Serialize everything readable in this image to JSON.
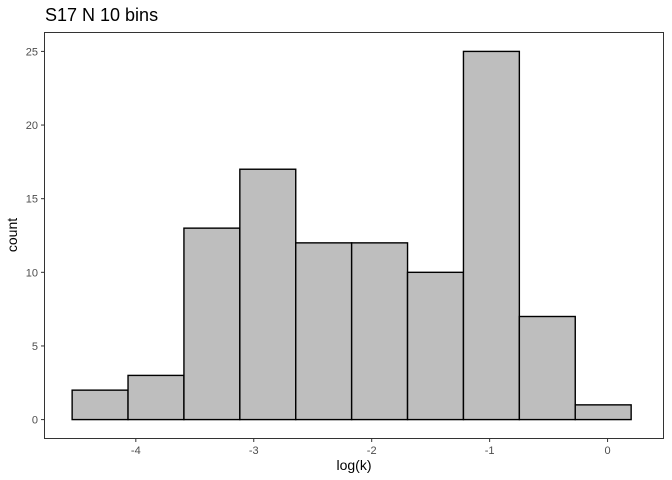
{
  "chart_data": {
    "type": "bar",
    "title": "S17 N 10 bins",
    "xlabel": "log(k)",
    "ylabel": "count",
    "bins": [
      {
        "x0": -4.54,
        "x1": -4.066,
        "count": 2
      },
      {
        "x0": -4.066,
        "x1": -3.592,
        "count": 3
      },
      {
        "x0": -3.592,
        "x1": -3.118,
        "count": 13
      },
      {
        "x0": -3.118,
        "x1": -2.644,
        "count": 17
      },
      {
        "x0": -2.644,
        "x1": -2.17,
        "count": 12
      },
      {
        "x0": -2.17,
        "x1": -1.696,
        "count": 12
      },
      {
        "x0": -1.696,
        "x1": -1.222,
        "count": 10
      },
      {
        "x0": -1.222,
        "x1": -0.748,
        "count": 25
      },
      {
        "x0": -0.748,
        "x1": -0.274,
        "count": 7
      },
      {
        "x0": -0.274,
        "x1": 0.2,
        "count": 1
      }
    ],
    "xlim": [
      -4.77,
      0.47
    ],
    "ylim": [
      -1.25,
      26.25
    ],
    "xticks": [
      -4,
      -3,
      -2,
      -1,
      0
    ],
    "xtick_labels": [
      "-4",
      "-3",
      "-2",
      "-1",
      "0"
    ],
    "yticks": [
      0,
      5,
      10,
      15,
      20,
      25
    ],
    "ytick_labels": [
      "0",
      "5",
      "10",
      "15",
      "20",
      "25"
    ],
    "grid": false,
    "bar_fill": "#bebebe",
    "bar_stroke": "#000000"
  }
}
